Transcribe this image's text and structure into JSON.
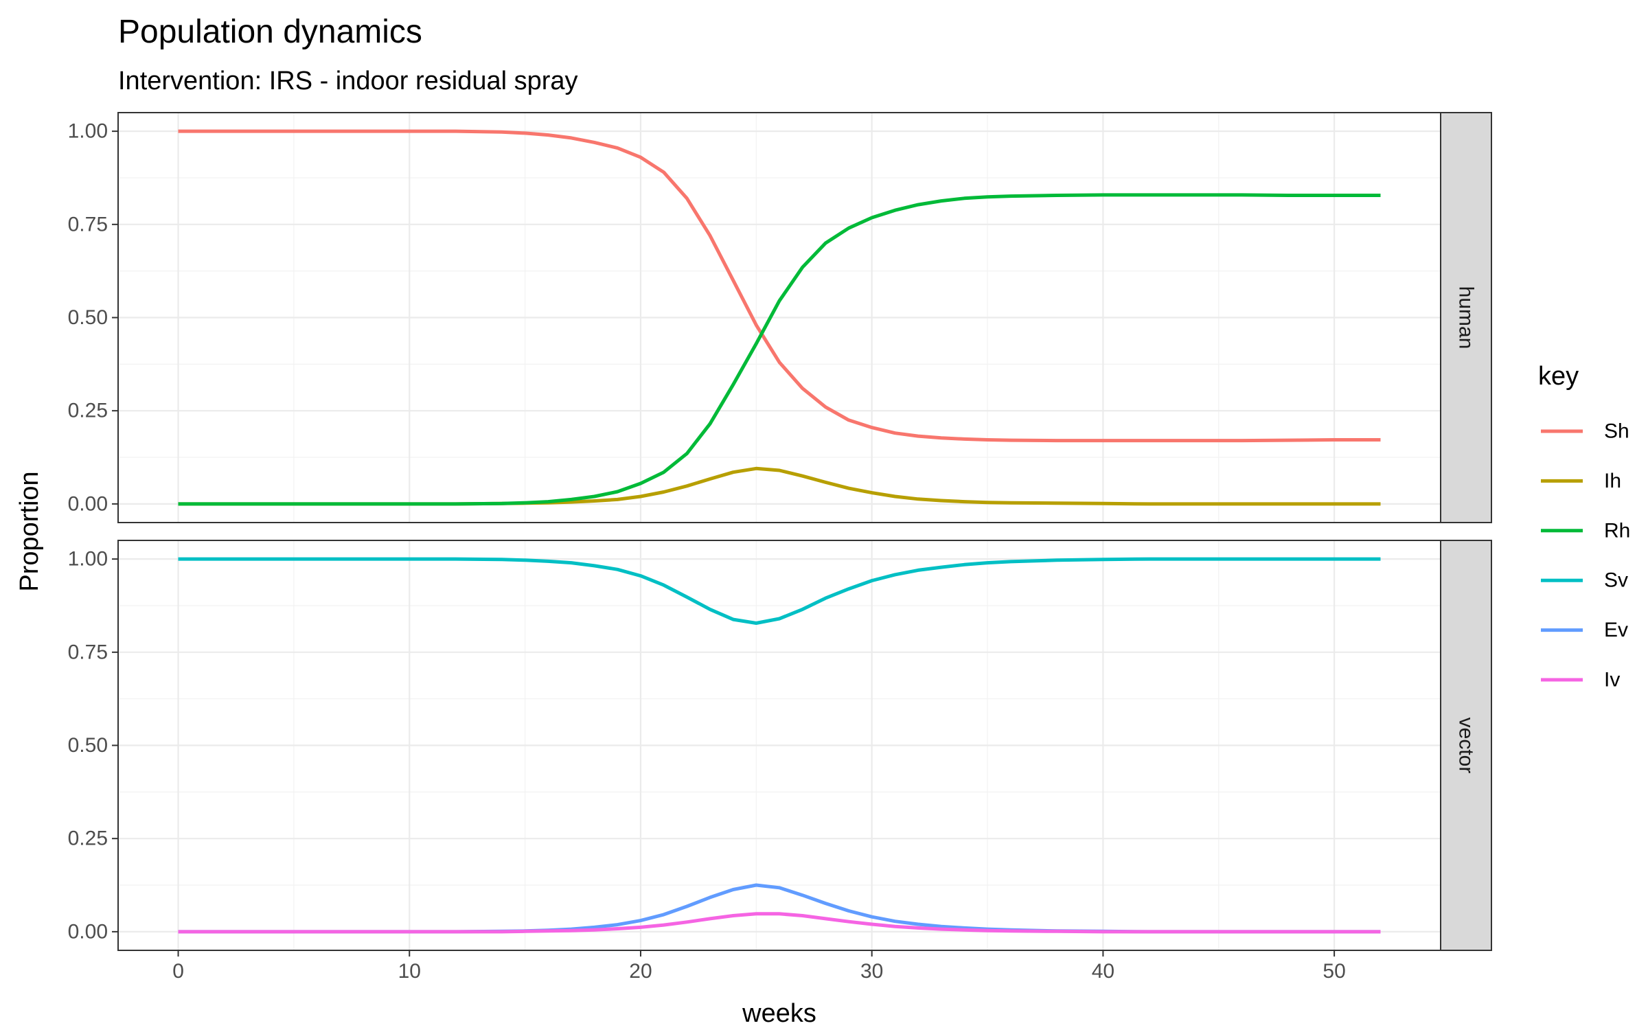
{
  "chart_data": {
    "type": "line",
    "title": "Population dynamics",
    "subtitle": "Intervention: IRS - indoor residual spray",
    "xlabel": "weeks",
    "ylabel": "Proportion",
    "xlim": [
      -2.6,
      54.6
    ],
    "ylim": [
      -0.05,
      1.05
    ],
    "x_ticks": [
      0,
      10,
      20,
      30,
      40,
      50
    ],
    "y_ticks": [
      0,
      0.25,
      0.5,
      0.75,
      1.0
    ],
    "x_tick_labels": [
      "0",
      "10",
      "20",
      "30",
      "40",
      "50"
    ],
    "y_tick_labels": [
      "0.00",
      "0.25",
      "0.50",
      "0.75",
      "1.00"
    ],
    "grid": true,
    "legend": {
      "title": "key",
      "position": "right"
    },
    "x": [
      0,
      2,
      4,
      6,
      8,
      10,
      12,
      14,
      15,
      16,
      17,
      18,
      19,
      20,
      21,
      22,
      23,
      24,
      25,
      26,
      27,
      28,
      29,
      30,
      31,
      32,
      33,
      34,
      35,
      36,
      38,
      40,
      42,
      44,
      46,
      48,
      50,
      52
    ],
    "panels": [
      {
        "label": "human",
        "series": [
          {
            "name": "Sh",
            "color": "#F8766D",
            "values": [
              1.0,
              1.0,
              1.0,
              1.0,
              1.0,
              1.0,
              1.0,
              0.998,
              0.995,
              0.99,
              0.982,
              0.97,
              0.955,
              0.93,
              0.89,
              0.82,
              0.72,
              0.6,
              0.48,
              0.38,
              0.31,
              0.26,
              0.225,
              0.205,
              0.19,
              0.182,
              0.177,
              0.174,
              0.172,
              0.171,
              0.17,
              0.17,
              0.17,
              0.17,
              0.17,
              0.171,
              0.172,
              0.172
            ]
          },
          {
            "name": "Ih",
            "color": "#B79F00",
            "values": [
              0.0,
              0.0,
              0.0,
              0.0,
              0.0,
              0.0,
              0.0,
              0.001,
              0.002,
              0.003,
              0.005,
              0.008,
              0.012,
              0.02,
              0.032,
              0.048,
              0.067,
              0.085,
              0.095,
              0.09,
              0.075,
              0.058,
              0.042,
              0.03,
              0.02,
              0.013,
              0.009,
              0.006,
              0.004,
              0.003,
              0.002,
              0.001,
              0.0,
              0.0,
              0.0,
              0.0,
              0.0,
              0.0
            ]
          },
          {
            "name": "Rh",
            "color": "#00BA38",
            "values": [
              0.0,
              0.0,
              0.0,
              0.0,
              0.0,
              0.0,
              0.0,
              0.001,
              0.003,
              0.006,
              0.012,
              0.02,
              0.033,
              0.055,
              0.085,
              0.135,
              0.215,
              0.32,
              0.43,
              0.545,
              0.635,
              0.7,
              0.74,
              0.768,
              0.788,
              0.803,
              0.813,
              0.82,
              0.824,
              0.826,
              0.828,
              0.829,
              0.829,
              0.829,
              0.829,
              0.828,
              0.828,
              0.828
            ]
          }
        ]
      },
      {
        "label": "vector",
        "series": [
          {
            "name": "Sv",
            "color": "#00BFC4",
            "values": [
              1.0,
              1.0,
              1.0,
              1.0,
              1.0,
              1.0,
              1.0,
              0.999,
              0.997,
              0.994,
              0.99,
              0.982,
              0.972,
              0.955,
              0.93,
              0.898,
              0.865,
              0.838,
              0.828,
              0.84,
              0.865,
              0.895,
              0.92,
              0.942,
              0.958,
              0.97,
              0.978,
              0.985,
              0.99,
              0.993,
              0.997,
              0.999,
              1.0,
              1.0,
              1.0,
              1.0,
              1.0,
              1.0
            ]
          },
          {
            "name": "Ev",
            "color": "#619CFF",
            "values": [
              0.0,
              0.0,
              0.0,
              0.0,
              0.0,
              0.0,
              0.0,
              0.001,
              0.002,
              0.004,
              0.007,
              0.012,
              0.019,
              0.03,
              0.046,
              0.068,
              0.092,
              0.113,
              0.125,
              0.118,
              0.098,
              0.076,
              0.056,
              0.04,
              0.028,
              0.02,
              0.014,
              0.01,
              0.007,
              0.005,
              0.002,
              0.001,
              0.0,
              0.0,
              0.0,
              0.0,
              0.0,
              0.0
            ]
          },
          {
            "name": "Iv",
            "color": "#F564E3",
            "values": [
              0.0,
              0.0,
              0.0,
              0.0,
              0.0,
              0.0,
              0.0,
              0.0,
              0.001,
              0.002,
              0.003,
              0.005,
              0.008,
              0.012,
              0.018,
              0.026,
              0.035,
              0.043,
              0.048,
              0.048,
              0.043,
              0.035,
              0.027,
              0.02,
              0.014,
              0.01,
              0.007,
              0.005,
              0.003,
              0.002,
              0.001,
              0.0,
              0.0,
              0.0,
              0.0,
              0.0,
              0.0,
              0.0
            ]
          }
        ]
      }
    ]
  }
}
